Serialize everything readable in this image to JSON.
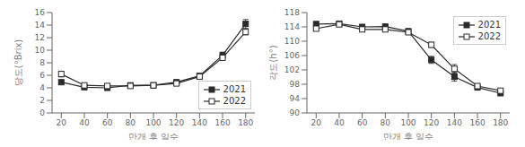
{
  "chart_data": [
    {
      "type": "line",
      "xlabel": "만개 후 일수",
      "ylabel": "당도(°Brix)",
      "x": [
        20,
        40,
        60,
        80,
        100,
        120,
        140,
        160,
        180
      ],
      "xlim": [
        12,
        188
      ],
      "xticks": [
        20,
        40,
        60,
        80,
        100,
        120,
        140,
        160,
        180
      ],
      "ylim": [
        0,
        16
      ],
      "yticks": [
        0,
        2,
        4,
        6,
        8,
        10,
        12,
        14,
        16
      ],
      "legend": "lower right",
      "grid": false,
      "series": [
        {
          "name": "2021",
          "color": "#2a2a2a",
          "marker": "square",
          "values": [
            4.9,
            4.1,
            4.0,
            4.4,
            4.4,
            4.9,
            5.9,
            9.2,
            14.2
          ],
          "errors": [
            0.25,
            0.15,
            0.12,
            0.15,
            0.15,
            0.2,
            0.3,
            0.5,
            0.7
          ]
        },
        {
          "name": "2022",
          "color": "#2a2a2a",
          "marker": "square-open",
          "values": [
            6.2,
            4.4,
            4.3,
            4.3,
            4.4,
            4.7,
            5.8,
            8.8,
            12.9
          ],
          "errors": [
            0.45,
            0.2,
            0.15,
            0.12,
            0.15,
            0.2,
            0.25,
            0.35,
            0.45
          ]
        }
      ]
    },
    {
      "type": "line",
      "xlabel": "만개 후 일수",
      "ylabel": "각도(h°)",
      "x": [
        20,
        40,
        60,
        80,
        100,
        120,
        140,
        160,
        180
      ],
      "xlim": [
        12,
        188
      ],
      "xticks": [
        20,
        40,
        60,
        80,
        100,
        120,
        140,
        160,
        180
      ],
      "ylim": [
        90,
        118
      ],
      "yticks": [
        90,
        94,
        98,
        102,
        106,
        110,
        114,
        118
      ],
      "legend": "upper right",
      "grid": false,
      "series": [
        {
          "name": "2021",
          "color": "#2a2a2a",
          "marker": "square",
          "values": [
            114.8,
            114.9,
            114.0,
            114.1,
            112.8,
            104.8,
            100.1,
            97.1,
            95.5
          ],
          "errors": [
            0.6,
            0.5,
            0.4,
            0.5,
            0.6,
            1.0,
            1.2,
            0.6,
            0.4
          ]
        },
        {
          "name": "2022",
          "color": "#2a2a2a",
          "marker": "square-open",
          "values": [
            113.5,
            114.7,
            113.3,
            113.3,
            112.5,
            109.0,
            102.3,
            97.5,
            96.2
          ],
          "errors": [
            0.6,
            0.6,
            0.5,
            0.5,
            0.6,
            0.7,
            1.2,
            0.6,
            0.5
          ]
        }
      ]
    }
  ]
}
